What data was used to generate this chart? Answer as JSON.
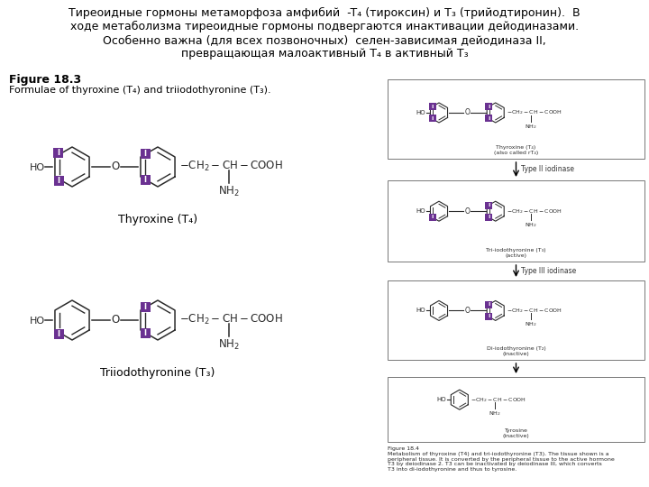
{
  "bg_color": "#ffffff",
  "fig_width": 7.2,
  "fig_height": 5.4,
  "dpi": 100,
  "russian_lines": [
    "Тиреоидные гормоны метаморфоза амфибий  -T₄ (тироксин) и T₃ (трийодтиронин).  В",
    "ходе метаболизма тиреоидные гормоны подвергаются инактивации дейодиназами.",
    "Особенно важна (для всех позвоночных)  селен-зависимая дейодиназа II,",
    "превращающая малоактивный T₄ в активный T₃"
  ],
  "fig_label": "Figure 18.3",
  "fig_sublabel": "Formulae of thyroxine (T₄) and triiodothyronine (T₃).",
  "thyroxine_label": "Thyroxine (T₄)",
  "triiodo_label": "Triiodothyronine (T₃)",
  "iodine_color": "#6a3191",
  "struct_color": "#2a2a2a",
  "text_color": "#000000",
  "caption18_4": "Figure 18.4\nMetabolism of thyroxine (T4) and tri-iodothyronine (T3). The tissue shown is a\nperipheral tissue. It is converted by the peripheral tissue to the active hormone\nT3 by deiodinase 2. T3 can be inactivated by deiodinase III, which converts\nT3 into di-iodothyronine and thus to tyrosine."
}
